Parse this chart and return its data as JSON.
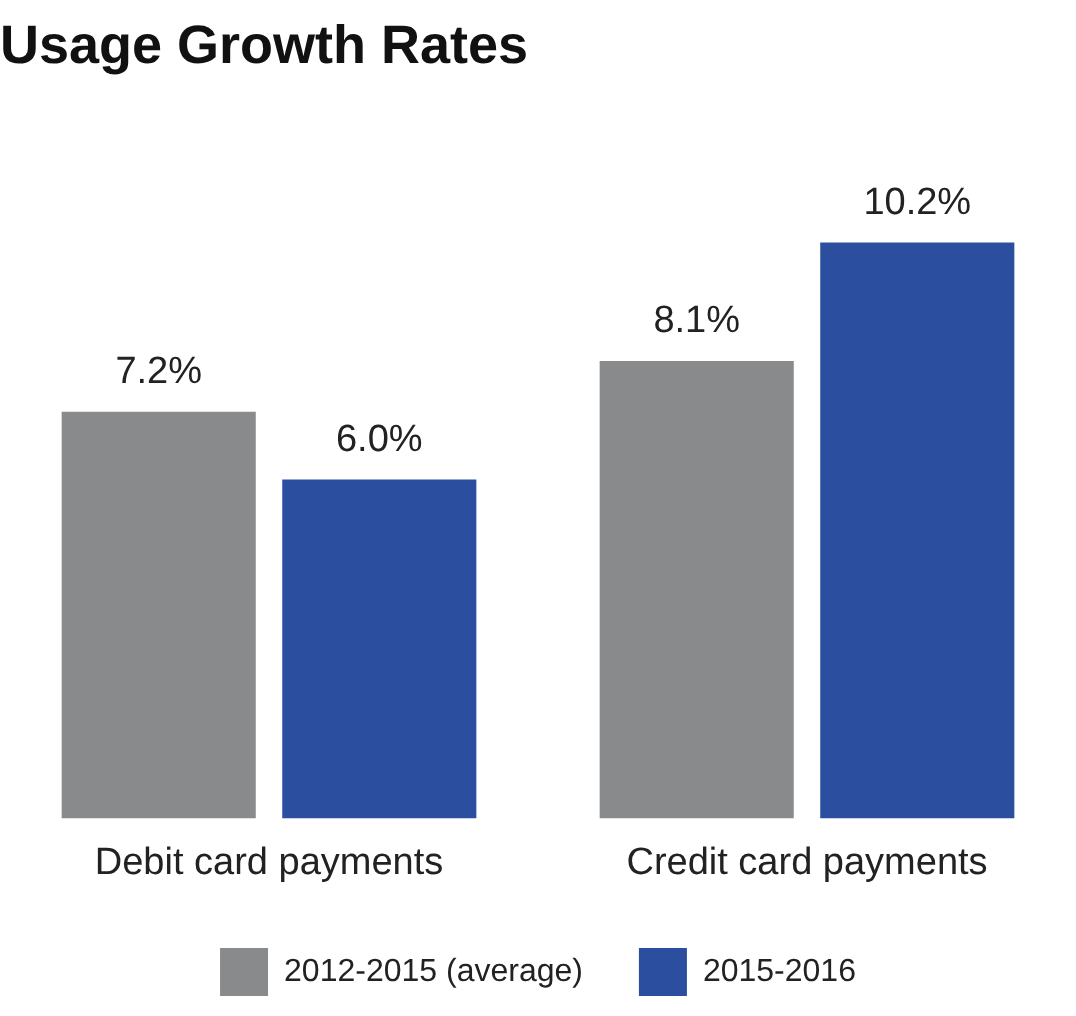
{
  "chart_data": {
    "type": "bar",
    "title": "Usage Growth Rates",
    "categories": [
      "Debit card payments",
      "Credit card payments"
    ],
    "series": [
      {
        "name": "2012-2015 (average)",
        "color": "#898a8c",
        "values": [
          7.2,
          8.1
        ],
        "value_labels": [
          "7.2%",
          "8.1%"
        ]
      },
      {
        "name": "2015-2016",
        "color": "#2b4f9e",
        "values": [
          6.0,
          10.2
        ],
        "value_labels": [
          "6.0%",
          "10.2%"
        ]
      }
    ],
    "legend": "bottom",
    "grid": false,
    "tick_labels": "x"
  }
}
